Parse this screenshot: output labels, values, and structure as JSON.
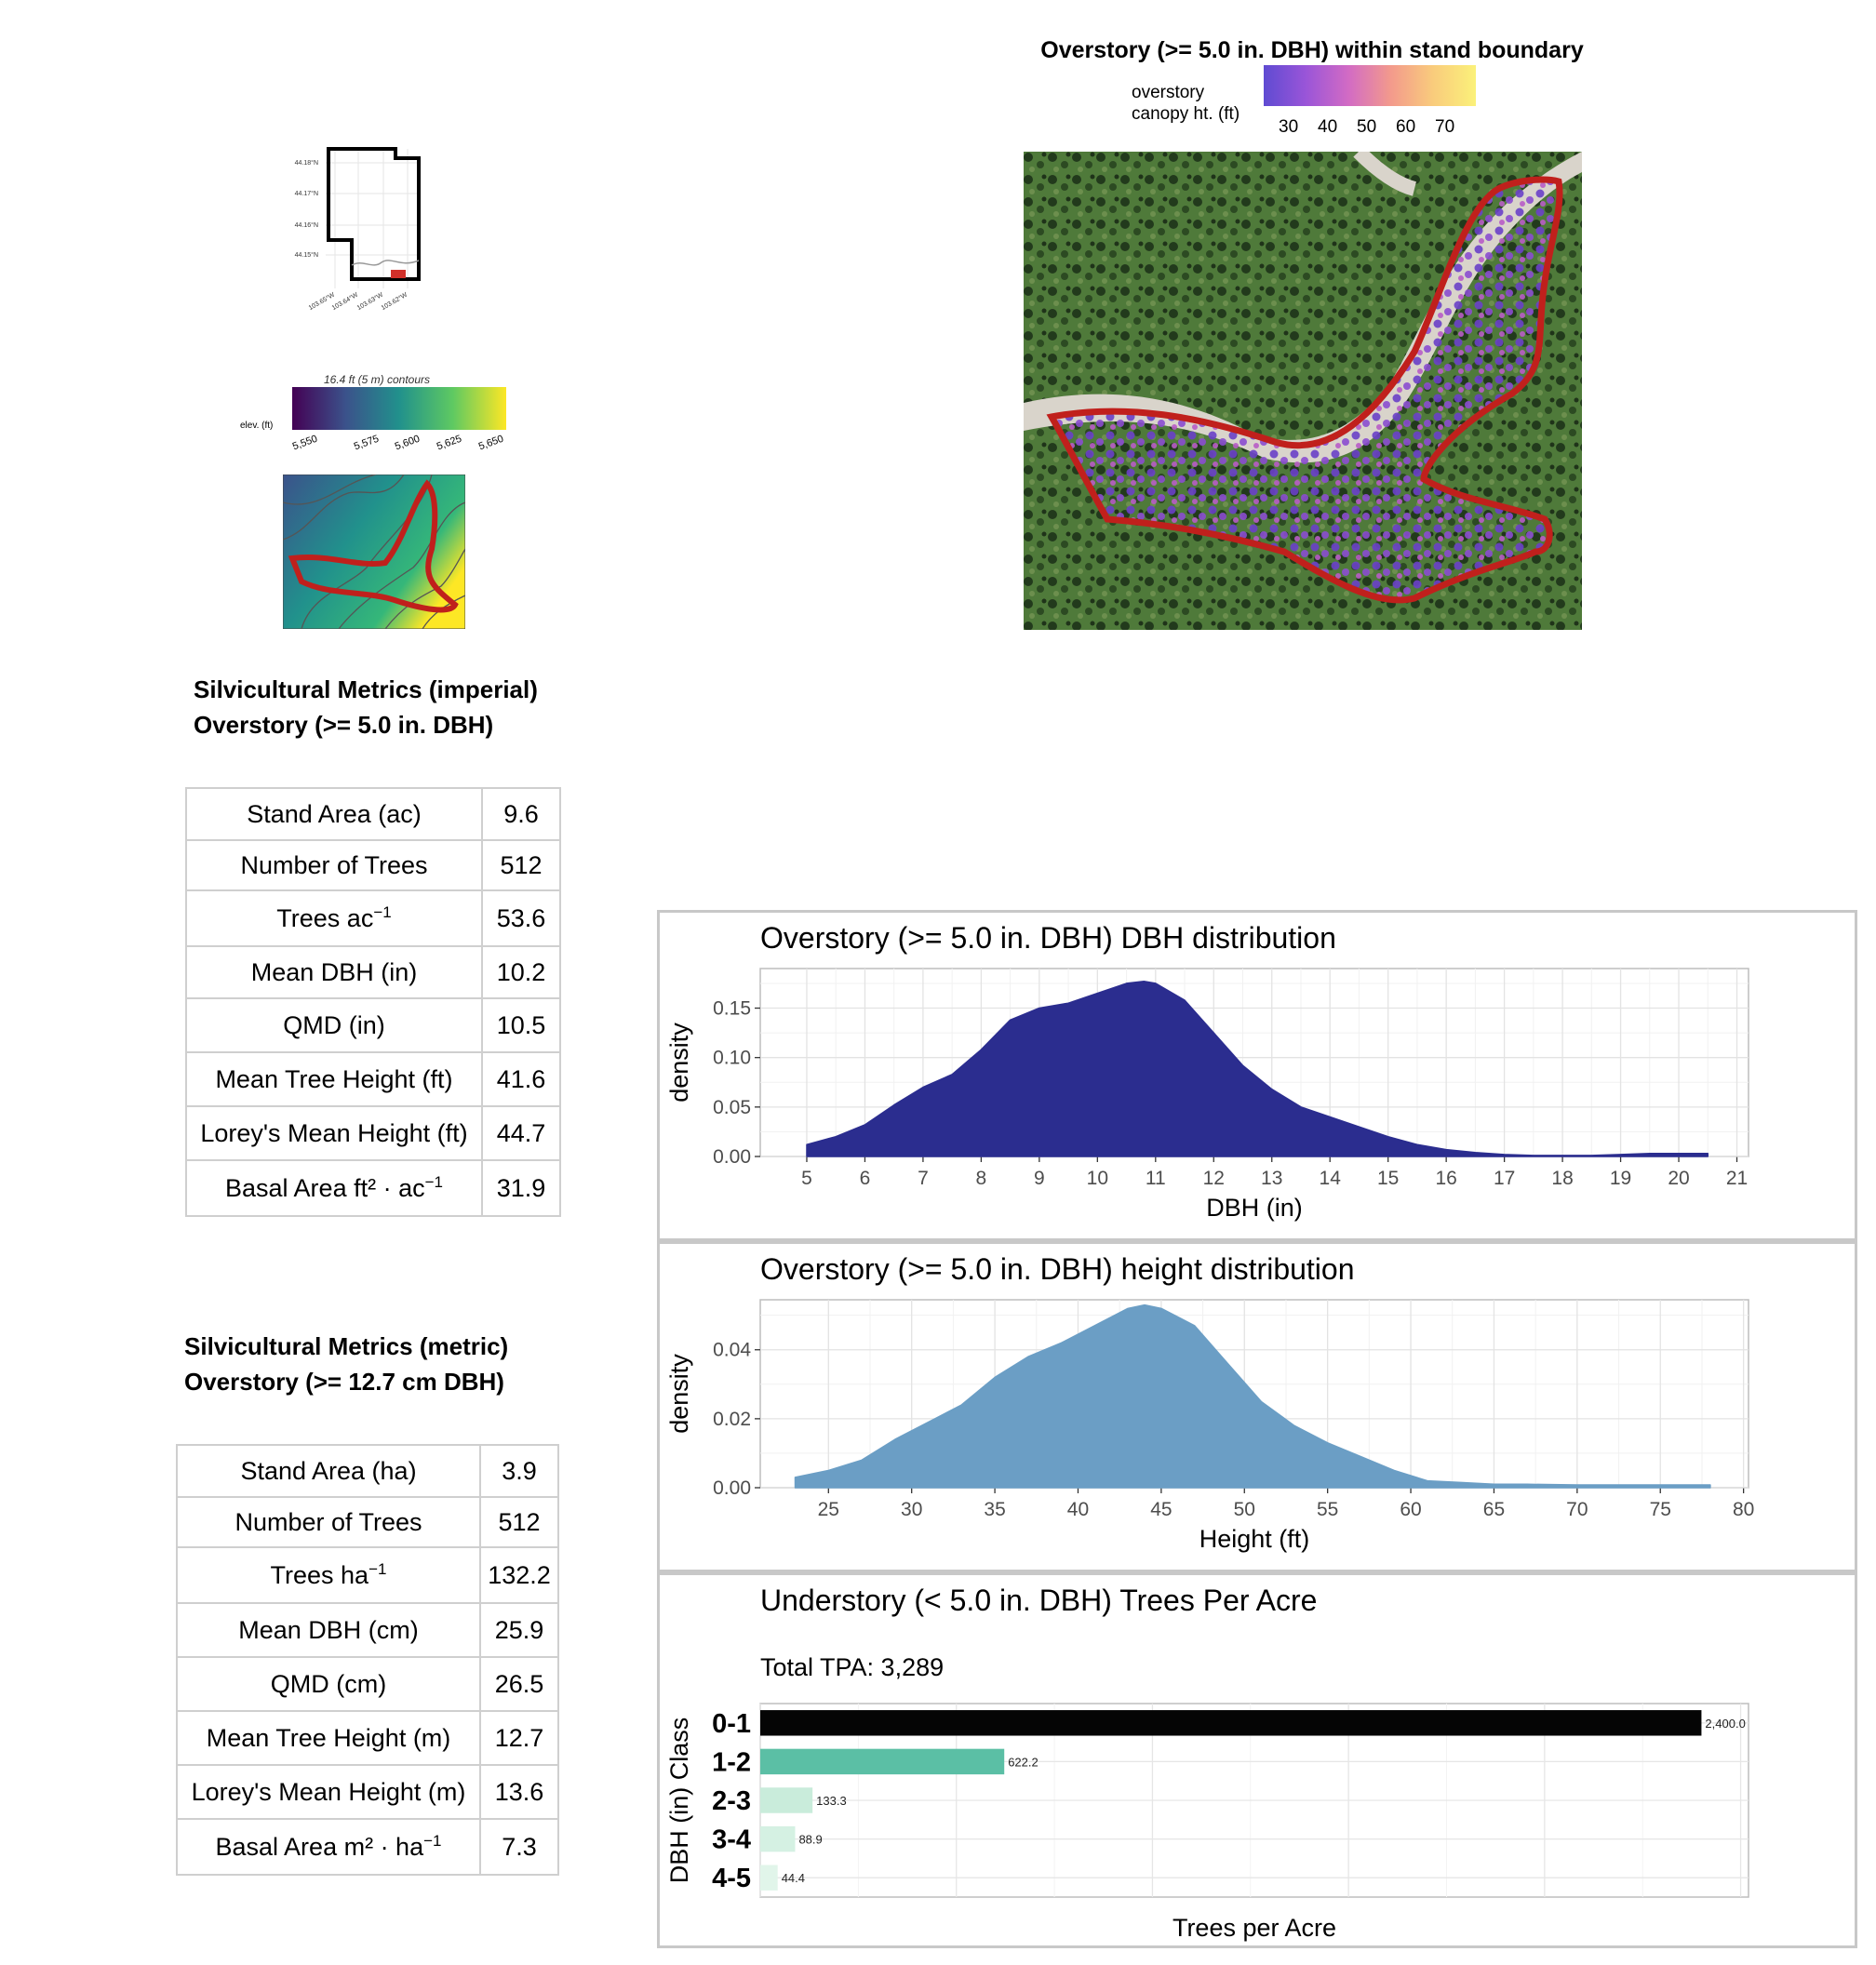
{
  "overstory_map": {
    "title": "Overstory (>= 5.0 in. DBH) within stand boundary",
    "legend_title_line1": "overstory",
    "legend_title_line2": "canopy ht. (ft)",
    "legend_ticks": [
      "30",
      "40",
      "50",
      "60",
      "70"
    ],
    "colors": [
      "#6a5acd",
      "#a05ad6",
      "#d870c0",
      "#f4a08a",
      "#fbe876"
    ]
  },
  "locator_map": {
    "lat_labels": [
      "44.18°N",
      "44.17°N",
      "44.16°N",
      "44.15°N"
    ],
    "lon_labels": [
      "103.65°W",
      "103.64°W",
      "103.63°W",
      "103.62°W"
    ]
  },
  "elevation_map": {
    "caption": "16.4 ft (5 m) contours",
    "legend_title": "elev. (ft)",
    "ticks": [
      "5,550",
      "5,575",
      "5,600",
      "5,625",
      "5,650"
    ]
  },
  "imperial": {
    "title_line1": "Silvicultural Metrics (imperial)",
    "title_line2": "Overstory (>= 5.0 in. DBH)",
    "rows": [
      {
        "label": "Stand Area (ac)",
        "sup": "",
        "value": "9.6"
      },
      {
        "label": "Number of Trees",
        "sup": "",
        "value": "512"
      },
      {
        "label": "Trees ac",
        "sup": "−1",
        "value": "53.6"
      },
      {
        "label": "Mean DBH (in)",
        "sup": "",
        "value": "10.2"
      },
      {
        "label": "QMD (in)",
        "sup": "",
        "value": "10.5"
      },
      {
        "label": "Mean Tree Height (ft)",
        "sup": "",
        "value": "41.6"
      },
      {
        "label": "Lorey's Mean Height (ft)",
        "sup": "",
        "value": "44.7"
      },
      {
        "label": "Basal Area ft² · ac",
        "sup": "−1",
        "value": "31.9"
      }
    ]
  },
  "metric": {
    "title_line1": "Silvicultural Metrics (metric)",
    "title_line2": "Overstory (>= 12.7 cm DBH)",
    "rows": [
      {
        "label": "Stand Area (ha)",
        "sup": "",
        "value": "3.9"
      },
      {
        "label": "Number of Trees",
        "sup": "",
        "value": "512"
      },
      {
        "label": "Trees ha",
        "sup": "−1",
        "value": "132.2"
      },
      {
        "label": "Mean DBH (cm)",
        "sup": "",
        "value": "25.9"
      },
      {
        "label": "QMD (cm)",
        "sup": "",
        "value": "26.5"
      },
      {
        "label": "Mean Tree Height (m)",
        "sup": "",
        "value": "12.7"
      },
      {
        "label": "Lorey's Mean Height (m)",
        "sup": "",
        "value": "13.6"
      },
      {
        "label": "Basal Area m² · ha",
        "sup": "−1",
        "value": "7.3"
      }
    ]
  },
  "chart_data": [
    {
      "type": "area",
      "title": "Overstory (>= 5.0 in. DBH) DBH distribution",
      "xlabel": "DBH (in)",
      "ylabel": "density",
      "xlim": [
        4.2,
        21.2
      ],
      "ylim": [
        0,
        0.19
      ],
      "xticks": [
        5,
        6,
        7,
        8,
        9,
        10,
        11,
        12,
        13,
        14,
        15,
        16,
        17,
        18,
        19,
        20,
        21
      ],
      "yticks": [
        0.0,
        0.05,
        0.1,
        0.15
      ],
      "ytick_labels": [
        "0.00",
        "0.05",
        "0.10",
        "0.15"
      ],
      "grid": true,
      "color": "#2b2d8f",
      "x": [
        5,
        5.5,
        6,
        6.5,
        7,
        7.5,
        8,
        8.5,
        9,
        9.5,
        10,
        10.5,
        10.8,
        11,
        11.5,
        12,
        12.5,
        13,
        13.5,
        14,
        14.5,
        15,
        15.5,
        16,
        16.5,
        17,
        17.5,
        18,
        18.5,
        19,
        19.5,
        20,
        20.5
      ],
      "y": [
        0.012,
        0.02,
        0.032,
        0.052,
        0.07,
        0.083,
        0.108,
        0.138,
        0.15,
        0.155,
        0.165,
        0.175,
        0.177,
        0.175,
        0.158,
        0.125,
        0.092,
        0.068,
        0.05,
        0.04,
        0.03,
        0.02,
        0.012,
        0.007,
        0.004,
        0.002,
        0.001,
        0.001,
        0.001,
        0.002,
        0.003,
        0.003,
        0.003
      ]
    },
    {
      "type": "area",
      "title": "Overstory (>= 5.0 in. DBH) height distribution",
      "xlabel": "Height (ft)",
      "ylabel": "density",
      "xlim": [
        20.9,
        80.3
      ],
      "ylim": [
        0,
        0.0545
      ],
      "xticks": [
        25,
        30,
        35,
        40,
        45,
        50,
        55,
        60,
        65,
        70,
        75,
        80
      ],
      "yticks": [
        0.0,
        0.02,
        0.04
      ],
      "ytick_labels": [
        "0.00",
        "0.02",
        "0.04"
      ],
      "grid": true,
      "color": "#6b9ec5",
      "x": [
        23,
        25,
        27,
        29,
        31,
        33,
        35,
        37,
        39,
        41,
        43,
        44,
        45,
        47,
        49,
        51,
        53,
        55,
        57,
        59,
        61,
        63,
        65,
        67,
        70,
        73,
        75,
        78
      ],
      "y": [
        0.003,
        0.005,
        0.008,
        0.014,
        0.019,
        0.024,
        0.032,
        0.038,
        0.042,
        0.047,
        0.052,
        0.053,
        0.052,
        0.047,
        0.036,
        0.025,
        0.018,
        0.013,
        0.009,
        0.005,
        0.002,
        0.0015,
        0.001,
        0.001,
        0.0008,
        0.0008,
        0.0008,
        0.0008
      ]
    },
    {
      "type": "bar",
      "orientation": "horizontal",
      "title": "Understory (< 5.0 in. DBH) Trees Per Acre",
      "subtitle": "Total TPA: 3,289",
      "xlabel": "Trees per Acre",
      "ylabel": "DBH (in) Class",
      "xlim": [
        0,
        2520
      ],
      "categories": [
        "0-1",
        "1-2",
        "2-3",
        "3-4",
        "4-5"
      ],
      "values": [
        2400.0,
        622.2,
        133.3,
        88.9,
        44.4
      ],
      "value_labels": [
        "2,400.0",
        "622.2",
        "133.3",
        "88.9",
        "44.4"
      ],
      "colors": [
        "#050505",
        "#5bbfa5",
        "#c9ecdb",
        "#d5f1e3",
        "#e1f5ea"
      ],
      "grid": true
    }
  ]
}
